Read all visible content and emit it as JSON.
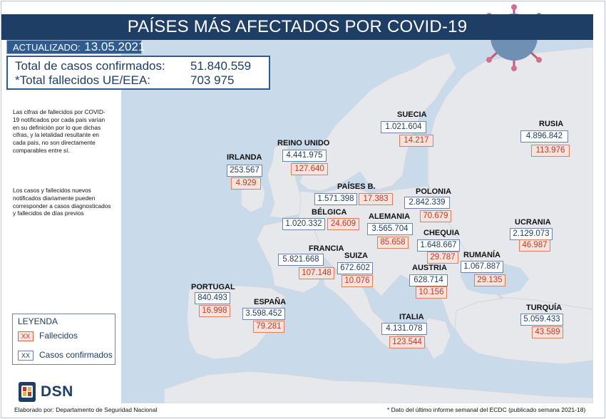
{
  "header": {
    "title": "PAÍSES MÁS AFECTADOS POR COVID-19",
    "updated_label": "ACTUALIZADO:",
    "updated_date": "13.05.2021"
  },
  "totals": {
    "cases_label": "Total de casos confirmados:",
    "cases_value": "51.840.559",
    "deaths_label": "*Total fallecidos UE/EEA:",
    "deaths_value": "703 975"
  },
  "notes": {
    "note1": "Las cifras de fallecidos por COVID-19 notificados por cada país varían en su definición por lo que dichas cifras, y la letalidad resultante en cada país, no son directamente comparables entre sí.",
    "note2": "Los casos y fallecidos nuevos notificados diariamente pueden corresponder a casos diagnosticados y fallecidos de días previos"
  },
  "legend": {
    "title": "LEYENDA",
    "swatch": "XX",
    "deaths_label": "Fallecidos",
    "cases_label": "Casos confirmados"
  },
  "countries": {
    "suecia": {
      "name": "SUECIA",
      "cases": "1.021.604",
      "deaths": "14.217"
    },
    "rusia": {
      "name": "RUSIA",
      "cases": "4.896.842",
      "deaths": "113.976"
    },
    "reino_unido": {
      "name": "REINO UNIDO",
      "cases": "4.441.975",
      "deaths": "127.640"
    },
    "irlanda": {
      "name": "IRLANDA",
      "cases": "253.567",
      "deaths": "4.929"
    },
    "paises_bajos": {
      "name": "PAÍSES B.",
      "cases": "1.571.398",
      "deaths": "17.383"
    },
    "polonia": {
      "name": "POLONIA",
      "cases": "2.842.339",
      "deaths": "70.679"
    },
    "belgica": {
      "name": "BÉLGICA",
      "cases": "1.020.332",
      "deaths": "24.609"
    },
    "alemania": {
      "name": "ALEMANIA",
      "cases": "3.565.704",
      "deaths": "85.658"
    },
    "ucrania": {
      "name": "UCRANIA",
      "cases": "2.129.073",
      "deaths": "46.987"
    },
    "chequia": {
      "name": "CHEQUIA",
      "cases": "1.648.667",
      "deaths": "29.787"
    },
    "francia": {
      "name": "FRANCIA",
      "cases": "5.821.668",
      "deaths": "107.148"
    },
    "suiza": {
      "name": "SUIZA",
      "cases": "672.602",
      "deaths": "10.076"
    },
    "rumania": {
      "name": "RUMANÍA",
      "cases": "1.067.887",
      "deaths": "29.135"
    },
    "austria": {
      "name": "AUSTRIA",
      "cases": "628.714",
      "deaths": "10.156"
    },
    "portugal": {
      "name": "PORTUGAL",
      "cases": "840.493",
      "deaths": "16.998"
    },
    "espana": {
      "name": "ESPAÑA",
      "cases": "3.598.452",
      "deaths": "79.281"
    },
    "turquia": {
      "name": "TURQUÍA",
      "cases": "5.059.433",
      "deaths": "43.589"
    },
    "italia": {
      "name": "ITALIA",
      "cases": "4.131.078",
      "deaths": "123.544"
    }
  },
  "branding": {
    "logo_text": "DSN",
    "credit": "Elaborado por: Departamento de Seguridad Nacional"
  },
  "footnote": "* Dato del último informe semanal del ECDC (publicado semana 2021-18)",
  "colors": {
    "header_bg": "#1f3e66",
    "badge_bg": "#2f5b8f",
    "sea": "#c9daea",
    "land": "#e6e8eb",
    "deaths_red": "#c0392b",
    "cases_blue": "#1f3e66"
  }
}
